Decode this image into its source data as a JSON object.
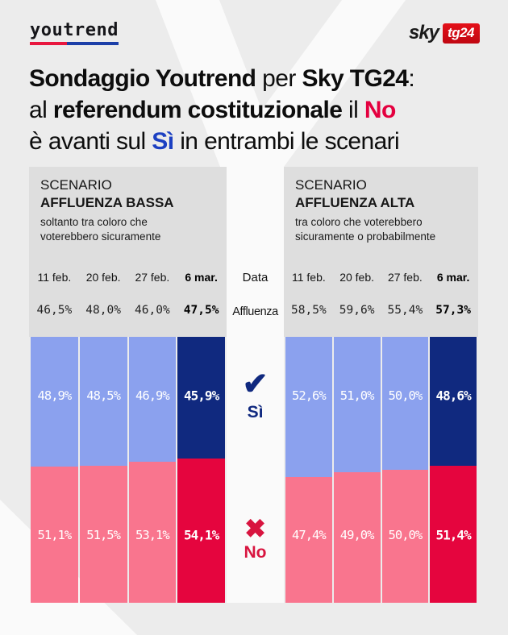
{
  "brand": {
    "logo_text": "youtrend",
    "sky_word": "sky",
    "sky_box": "tg24"
  },
  "title": {
    "l1a": "Sondaggio Youtrend",
    "l1b": " per ",
    "l1c": "Sky TG24",
    "l1d": ":",
    "l2a": "al ",
    "l2b": "referendum costituzionale",
    "l2c": " il ",
    "l2d": "No",
    "l3a": "è avanti sul ",
    "l3b": "Sì",
    "l3c": " in entrambi le scenari"
  },
  "middle": {
    "data_label": "Data",
    "affluenza_label": "Affluenza",
    "check_icon": "✔",
    "cross_icon": "✖",
    "si_label": "Sì",
    "no_label": "No"
  },
  "panels": [
    {
      "scenario_label": "SCENARIO",
      "scenario_name": "AFFLUENZA BASSA",
      "subtitle": "soltanto tra coloro che voterebbero sicuramente"
    },
    {
      "scenario_label": "SCENARIO",
      "scenario_name": "AFFLUENZA ALTA",
      "subtitle": "tra coloro che voterebbero sicuramente o probabilmente"
    }
  ],
  "chart_data": [
    {
      "type": "bar",
      "stacked": true,
      "title": "SCENARIO AFFLUENZA BASSA",
      "subtitle": "soltanto tra coloro che voterebbero sicuramente",
      "categories": [
        "11 feb.",
        "20 feb.",
        "27 feb.",
        "6 mar."
      ],
      "series": [
        {
          "name": "Affluenza",
          "values": [
            46.5,
            48.0,
            46.0,
            47.5
          ]
        },
        {
          "name": "Sì",
          "values": [
            48.9,
            48.5,
            46.9,
            45.9
          ]
        },
        {
          "name": "No",
          "values": [
            51.1,
            51.5,
            53.1,
            54.1
          ]
        }
      ],
      "unit": "%",
      "decimal_separator": ",",
      "highlight_index": 3,
      "legend_position": "middle"
    },
    {
      "type": "bar",
      "stacked": true,
      "title": "SCENARIO AFFLUENZA ALTA",
      "subtitle": "tra coloro che voterebbero sicuramente o probabilmente",
      "categories": [
        "11 feb.",
        "20 feb.",
        "27 feb.",
        "6 mar."
      ],
      "series": [
        {
          "name": "Affluenza",
          "values": [
            58.5,
            59.6,
            55.4,
            57.3
          ]
        },
        {
          "name": "Sì",
          "values": [
            52.6,
            51.0,
            50.0,
            48.6
          ]
        },
        {
          "name": "No",
          "values": [
            47.4,
            49.0,
            50.0,
            51.4
          ]
        }
      ],
      "unit": "%",
      "decimal_separator": ",",
      "highlight_index": 3,
      "legend_position": "middle"
    }
  ],
  "colors": {
    "light_blue": "#8ba1ee",
    "navy": "#10297f",
    "pink": "#f9758e",
    "red": "#e5053e",
    "label_navy": "#10297f",
    "label_red": "#d8143f",
    "title_no": "#e4003f",
    "title_si": "#1c40c2",
    "panel_bg": "#dedede",
    "page_bg": "#ececec",
    "watermark": "#fafafa",
    "logo_red": "#e8173f",
    "logo_blue": "#1c3fa8"
  }
}
